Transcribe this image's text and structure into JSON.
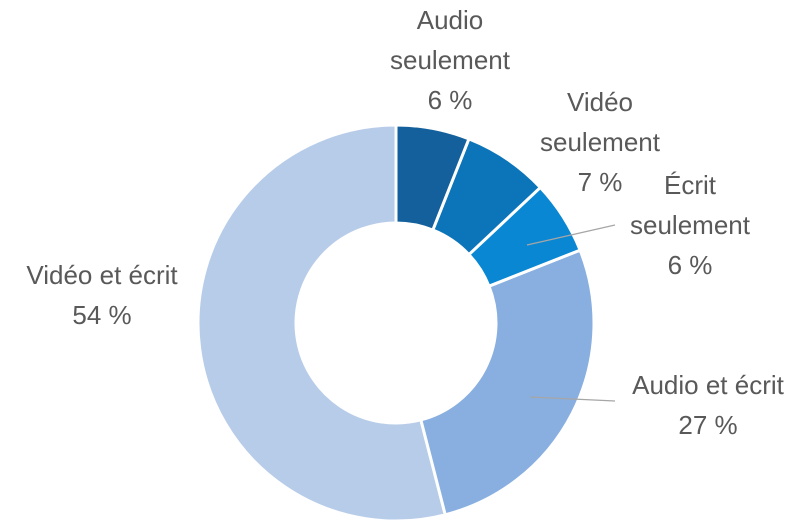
{
  "chart_data": {
    "type": "donut",
    "categories": [
      "Audio seulement",
      "Vidéo seulement",
      "Écrit seulement",
      "Audio et écrit",
      "Vidéo et écrit"
    ],
    "values": [
      6,
      7,
      6,
      27,
      54
    ],
    "value_labels": [
      "6 %",
      "7 %",
      "6 %",
      "27 %",
      "54 %"
    ],
    "colors": [
      "#13609c",
      "#0c74b8",
      "#0a87d3",
      "#88afe0",
      "#b7cce9"
    ]
  }
}
